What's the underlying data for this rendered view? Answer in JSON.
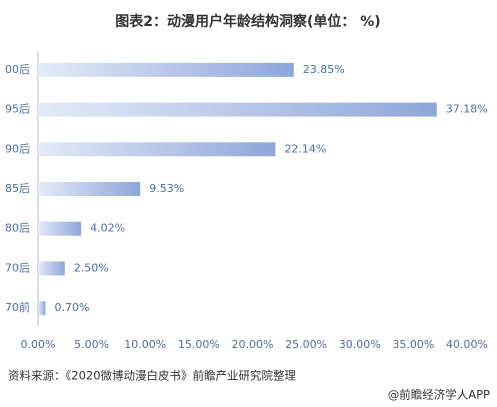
{
  "chart_data": {
    "type": "bar",
    "orientation": "horizontal",
    "title": "图表2：动漫用户年龄结构洞察(单位： %)",
    "categories": [
      "00后",
      "95后",
      "90后",
      "85后",
      "80后",
      "70后",
      "70前"
    ],
    "values": [
      23.85,
      37.18,
      22.14,
      9.53,
      4.02,
      2.5,
      0.7
    ],
    "value_labels": [
      "23.85%",
      "37.18%",
      "22.14%",
      "9.53%",
      "4.02%",
      "2.50%",
      "0.70%"
    ],
    "color": "#8ea6da",
    "xlim": [
      0,
      40
    ],
    "xticks": [
      {
        "value": 0,
        "label": "0.00%"
      },
      {
        "value": 5,
        "label": "5.00%"
      },
      {
        "value": 10,
        "label": "10.00%"
      },
      {
        "value": 15,
        "label": "15.00%"
      },
      {
        "value": 20,
        "label": "20.00%"
      },
      {
        "value": 25,
        "label": "25.00%"
      },
      {
        "value": 30,
        "label": "30.00%"
      },
      {
        "value": 35,
        "label": "35.00%"
      },
      {
        "value": 40,
        "label": "40.00%"
      }
    ],
    "source": "资料来源：《2020微博动漫白皮书》前瞻产业研究院整理",
    "footer": "@前瞻经济学人APP"
  }
}
